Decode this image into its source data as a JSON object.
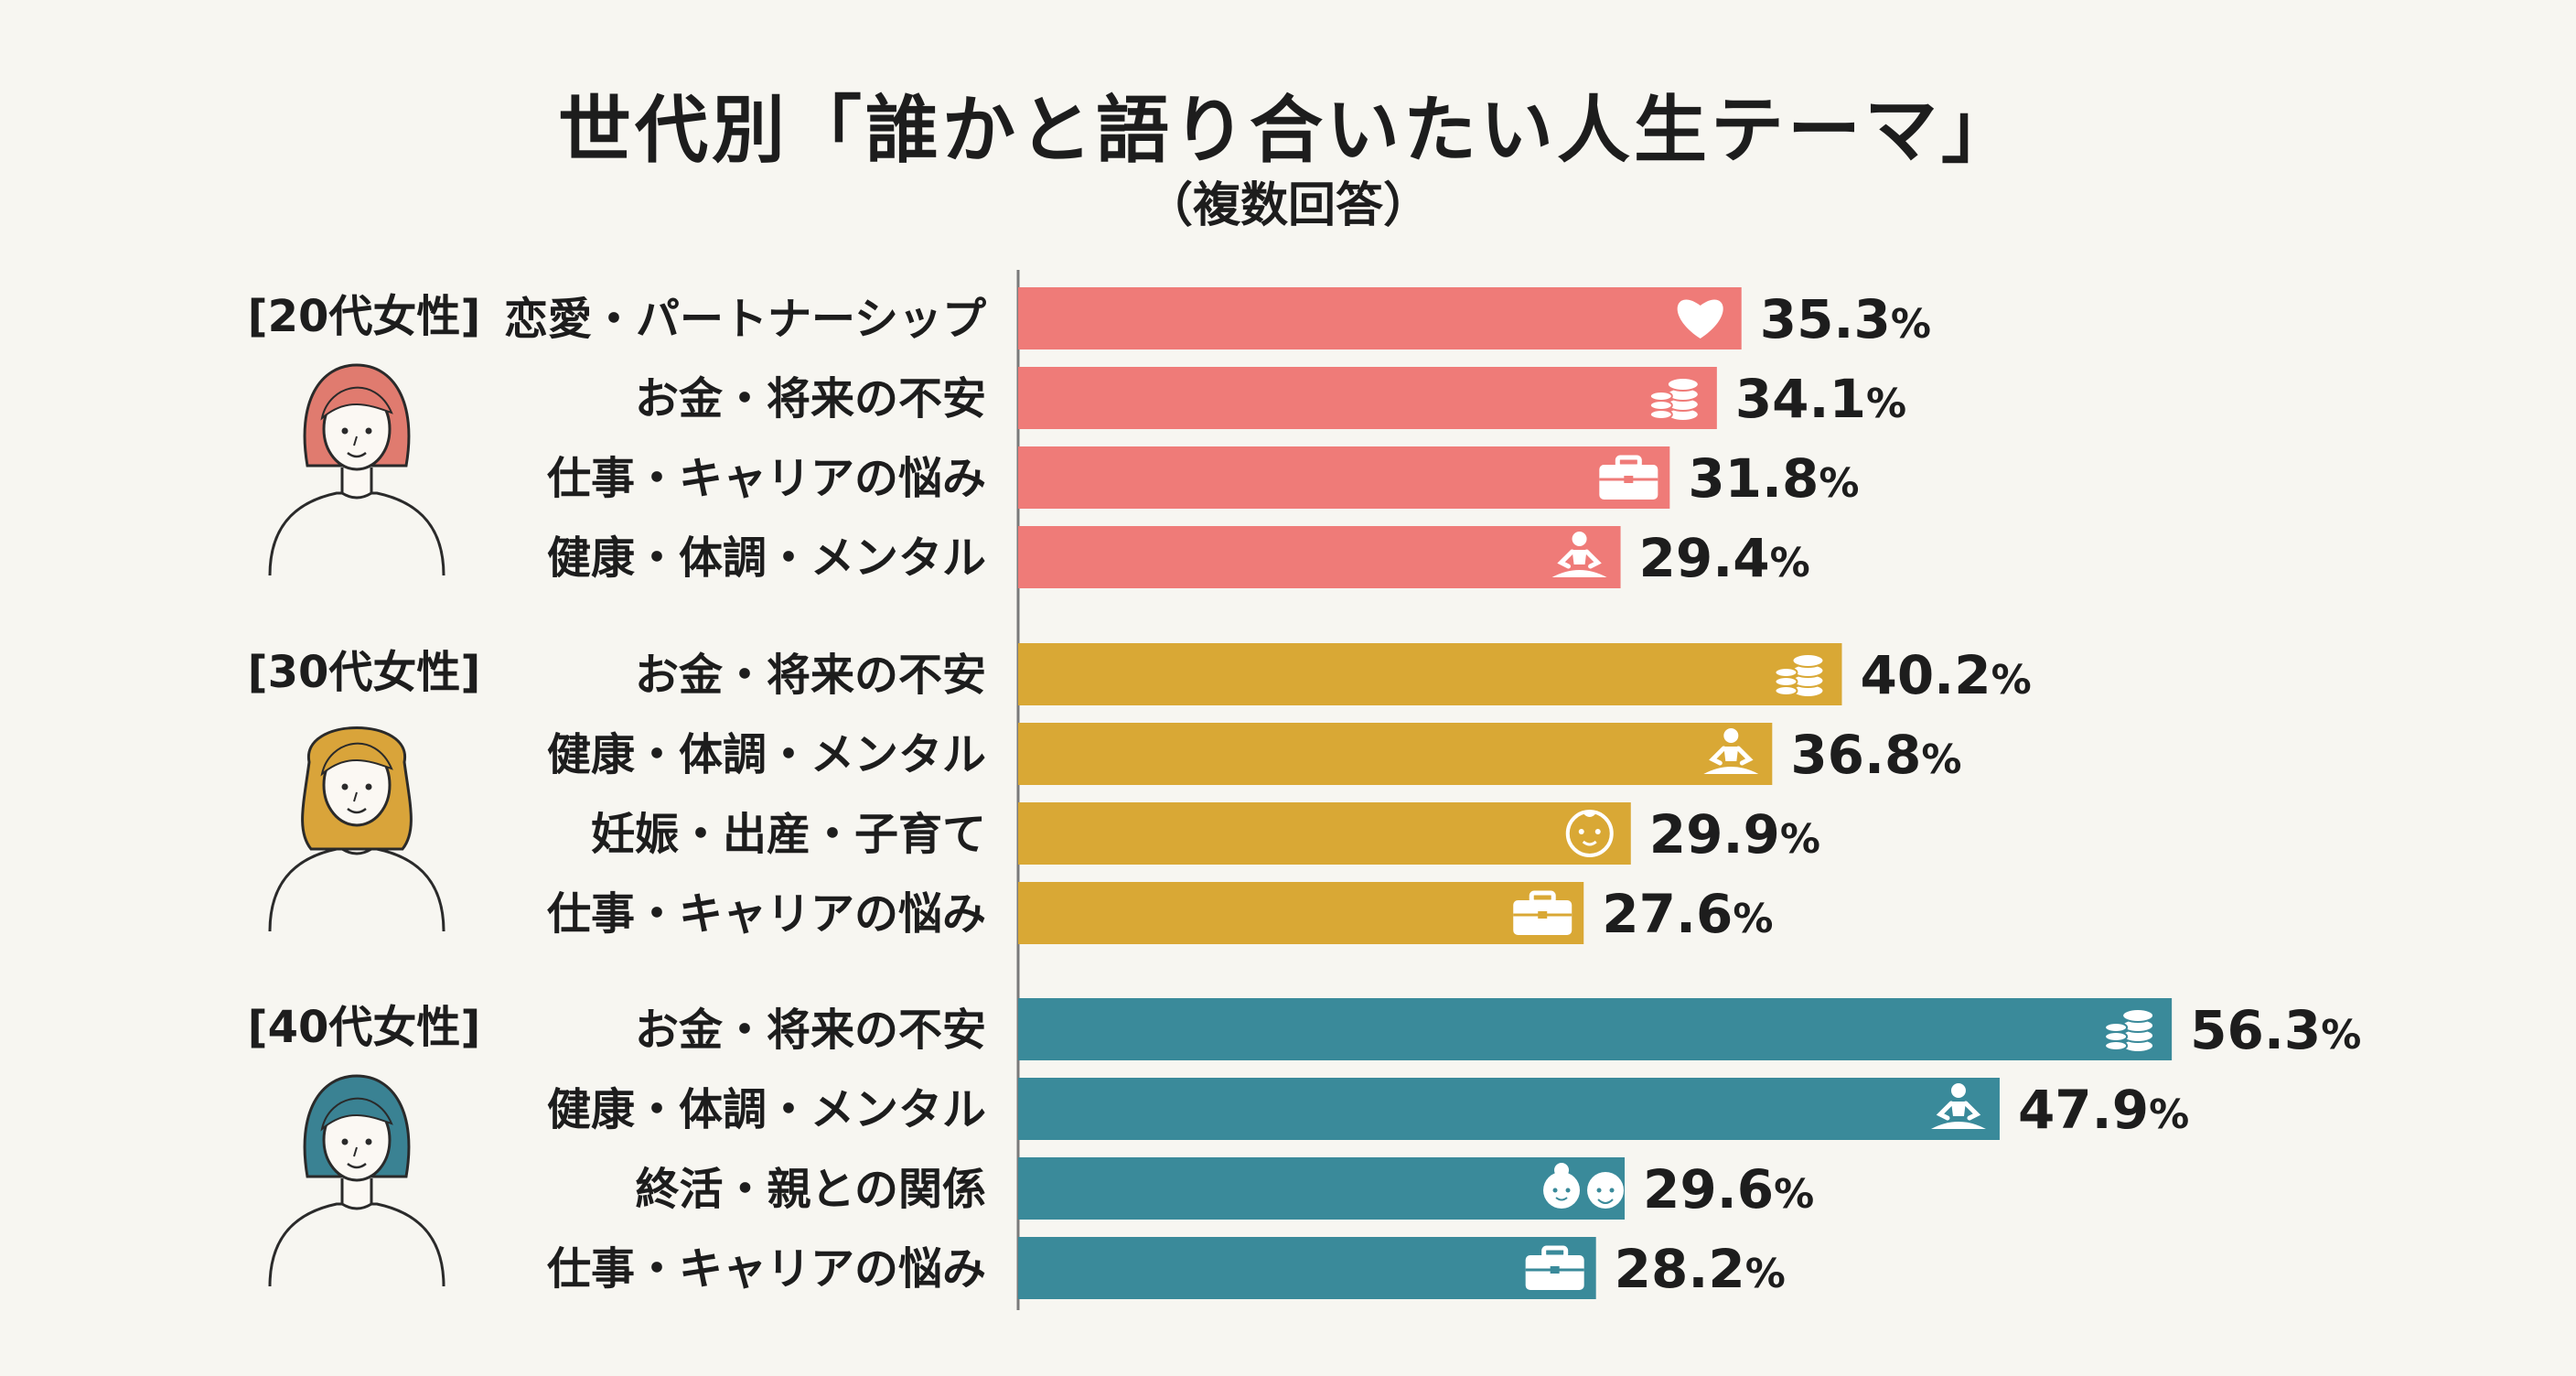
{
  "title": "世代別「誰かと語り合いたい人生テーマ」",
  "subtitle": "（複数回答）",
  "chart_data": {
    "type": "bar",
    "orientation": "horizontal",
    "title": "世代別「誰かと語り合いたい人生テーマ」",
    "subtitle": "（複数回答）",
    "unit": "%",
    "groups": [
      {
        "label": "[20代女性]",
        "color": "#ef7b78",
        "hair": "#e07b6f",
        "bars": [
          {
            "category": "恋愛・パートナーシップ",
            "value": 35.3,
            "icon": "heart-icon"
          },
          {
            "category": "お金・将来の不安",
            "value": 34.1,
            "icon": "coins-icon"
          },
          {
            "category": "仕事・キャリアの悩み",
            "value": 31.8,
            "icon": "briefcase-icon"
          },
          {
            "category": "健康・体調・メンタル",
            "value": 29.4,
            "icon": "meditation-icon"
          }
        ]
      },
      {
        "label": "[30代女性]",
        "color": "#d9a835",
        "hair": "#d9a43a",
        "bars": [
          {
            "category": "お金・将来の不安",
            "value": 40.2,
            "icon": "coins-icon"
          },
          {
            "category": "健康・体調・メンタル",
            "value": 36.8,
            "icon": "meditation-icon"
          },
          {
            "category": "妊娠・出産・子育て",
            "value": 29.9,
            "icon": "baby-face-icon"
          },
          {
            "category": "仕事・キャリアの悩み",
            "value": 27.6,
            "icon": "briefcase-icon"
          }
        ]
      },
      {
        "label": "[40代女性]",
        "color": "#3a8a9a",
        "hair": "#3a8293",
        "bars": [
          {
            "category": "お金・将来の不安",
            "value": 56.3,
            "icon": "coins-icon"
          },
          {
            "category": "健康・体調・メンタル",
            "value": 47.9,
            "icon": "meditation-icon"
          },
          {
            "category": "終活・親との関係",
            "value": 29.6,
            "icon": "elderly-couple-icon"
          },
          {
            "category": "仕事・キャリアの悩み",
            "value": 28.2,
            "icon": "briefcase-icon"
          }
        ]
      }
    ]
  }
}
